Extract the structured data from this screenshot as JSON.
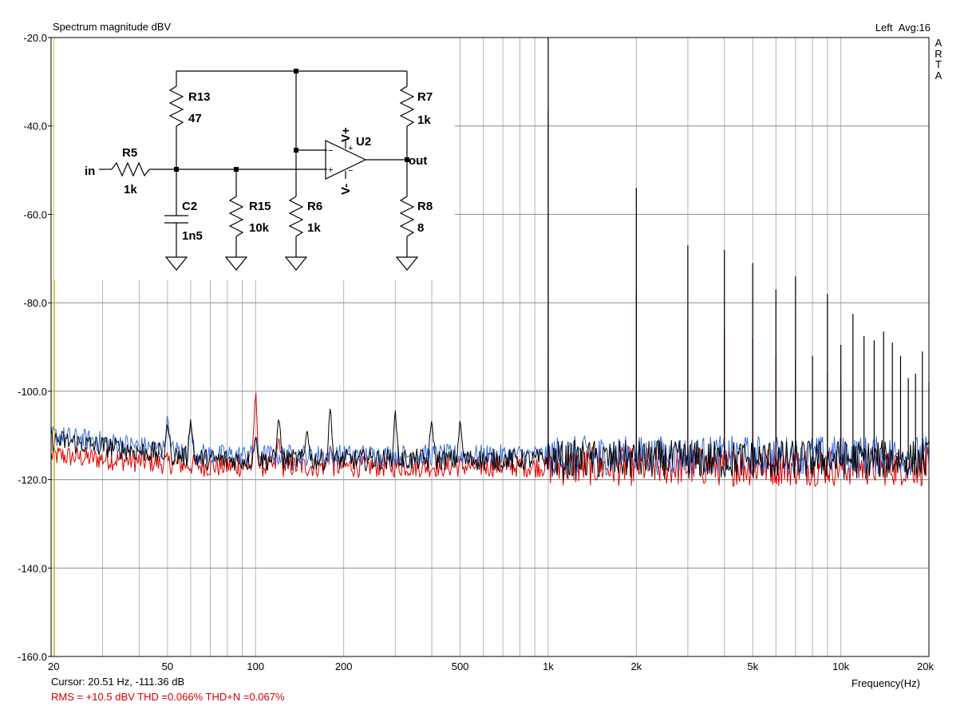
{
  "header": {
    "title": "Spectrum magnitude dBV",
    "channel": "Left",
    "avg": "Avg:16",
    "side_letters": [
      "A",
      "R",
      "T",
      "A"
    ]
  },
  "footer": {
    "cursor": "Cursor: 20.51 Hz, -111.36 dB",
    "stats": "RMS =  +10.5 dBV   THD =0.066%   THD+N =0.067%"
  },
  "chart_data": {
    "type": "line",
    "title": "Spectrum magnitude dBV",
    "xlabel": "Frequency(Hz)",
    "ylabel": "",
    "x_scale": "log",
    "xlim": [
      20,
      20000
    ],
    "ylim": [
      -160,
      -20
    ],
    "x_ticks": [
      {
        "v": 20,
        "label": "20"
      },
      {
        "v": 50,
        "label": "50"
      },
      {
        "v": 100,
        "label": "100"
      },
      {
        "v": 200,
        "label": "200"
      },
      {
        "v": 500,
        "label": "500"
      },
      {
        "v": 1000,
        "label": "1k"
      },
      {
        "v": 2000,
        "label": "2k"
      },
      {
        "v": 5000,
        "label": "5k"
      },
      {
        "v": 10000,
        "label": "10k"
      },
      {
        "v": 20000,
        "label": "20k"
      }
    ],
    "y_ticks": [
      {
        "v": -20,
        "label": "-20.0"
      },
      {
        "v": -40,
        "label": "-40.0"
      },
      {
        "v": -60,
        "label": "-60.0"
      },
      {
        "v": -80,
        "label": "-80.0"
      },
      {
        "v": -100,
        "label": "-100.0"
      },
      {
        "v": -120,
        "label": "-120.0"
      },
      {
        "v": -140,
        "label": "-140.0"
      },
      {
        "v": -160,
        "label": "-160.0"
      }
    ],
    "grid": true,
    "colors": {
      "black": "#000000",
      "red": "#e00000",
      "blue": "#3a6fd8",
      "cursor": "#c8b400",
      "grid": "#b4b4b4"
    },
    "series": [
      {
        "color": "black",
        "noise_floor": -115.5,
        "peaks": [
          [
            50,
            -107
          ],
          [
            60,
            -106
          ],
          [
            100,
            -110
          ],
          [
            120,
            -105
          ],
          [
            150,
            -108
          ],
          [
            180,
            -103
          ],
          [
            300,
            -104
          ],
          [
            400,
            -106
          ],
          [
            500,
            -106
          ],
          [
            1000,
            -20
          ],
          [
            2000,
            -54
          ],
          [
            3000,
            -67
          ],
          [
            4000,
            -68
          ],
          [
            5000,
            -71
          ],
          [
            6000,
            -77
          ],
          [
            7000,
            -74
          ],
          [
            8000,
            -92
          ],
          [
            9000,
            -78
          ],
          [
            10000,
            -89.5
          ],
          [
            11000,
            -82.5
          ],
          [
            12000,
            -87.5
          ],
          [
            13000,
            -88.5
          ],
          [
            14000,
            -86.5
          ],
          [
            15000,
            -89
          ],
          [
            16000,
            -92
          ],
          [
            17000,
            -97
          ],
          [
            18000,
            -96
          ],
          [
            19000,
            -91
          ],
          [
            20000,
            -98
          ]
        ]
      },
      {
        "color": "red",
        "noise_floor": -117,
        "peaks": [
          [
            100,
            -99
          ],
          [
            120,
            -110
          ],
          [
            180,
            -112
          ],
          [
            1000,
            -36.5
          ],
          [
            2000,
            -77
          ],
          [
            3000,
            -84
          ],
          [
            4000,
            -86
          ],
          [
            5000,
            -88
          ],
          [
            6000,
            -92
          ],
          [
            7000,
            -93
          ],
          [
            9000,
            -96
          ],
          [
            10000,
            -98
          ]
        ]
      },
      {
        "color": "blue",
        "noise_floor": -114.5,
        "peaks": [
          [
            50,
            -105
          ],
          [
            60,
            -107
          ],
          [
            100,
            -110
          ],
          [
            1000,
            -90
          ]
        ]
      }
    ],
    "cursor_x": 20.51
  },
  "schematic": {
    "labels": {
      "in": "in",
      "out": "out",
      "r5": "R5",
      "r5v": "1k",
      "r13": "R13",
      "r13v": "47",
      "c2": "C2",
      "c2v": "1n5",
      "r15": "R15",
      "r15v": "10k",
      "r6": "R6",
      "r6v": "1k",
      "r7": "R7",
      "r7v": "1k",
      "r8": "R8",
      "r8v": "8",
      "u2": "U2",
      "vp": "V+",
      "vm": "V-"
    }
  }
}
